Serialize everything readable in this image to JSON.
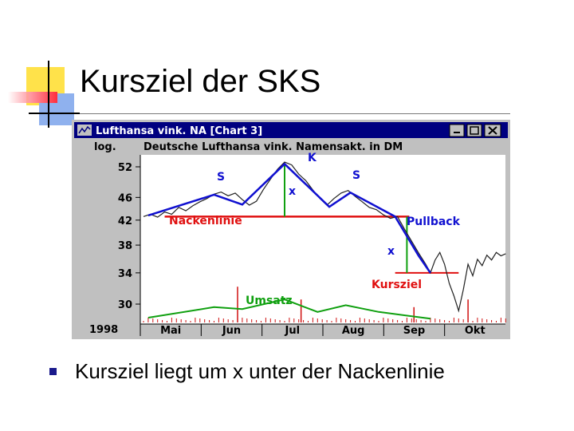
{
  "slide": {
    "title": "Kursziel der SKS",
    "bullet_text": "Kursziel liegt um x unter der Nackenlinie"
  },
  "window": {
    "title": "Lufthansa vink. NA  [Chart 3]",
    "buttons": [
      "minimize",
      "maximize",
      "close"
    ]
  },
  "chart_data": {
    "type": "line",
    "title": "Deutsche Lufthansa vink. Namensakt. in DM",
    "scale": "log.",
    "year": "1998",
    "y_ticks": [
      30,
      34,
      38,
      42,
      46,
      52
    ],
    "x_months": [
      "Mai",
      "Jun",
      "Jul",
      "Aug",
      "Sep",
      "Okt"
    ],
    "price_series": [
      [
        0,
        42.6
      ],
      [
        3,
        43.0
      ],
      [
        6,
        42.5
      ],
      [
        9,
        43.4
      ],
      [
        12,
        43.0
      ],
      [
        15,
        44.2
      ],
      [
        18,
        43.6
      ],
      [
        21,
        44.5
      ],
      [
        24,
        45.2
      ],
      [
        27,
        45.8
      ],
      [
        30,
        46.6
      ],
      [
        33,
        47.0
      ],
      [
        36,
        46.3
      ],
      [
        39,
        46.8
      ],
      [
        42,
        45.6
      ],
      [
        45,
        44.6
      ],
      [
        48,
        45.3
      ],
      [
        51,
        47.5
      ],
      [
        54,
        49.5
      ],
      [
        57,
        51.5
      ],
      [
        60,
        53.0
      ],
      [
        63,
        52.4
      ],
      [
        66,
        50.5
      ],
      [
        69,
        49.2
      ],
      [
        72,
        47.4
      ],
      [
        75,
        45.8
      ],
      [
        78,
        44.6
      ],
      [
        81,
        45.8
      ],
      [
        84,
        46.8
      ],
      [
        87,
        47.3
      ],
      [
        90,
        46.2
      ],
      [
        93,
        45.2
      ],
      [
        96,
        44.2
      ],
      [
        99,
        43.8
      ],
      [
        102,
        42.9
      ],
      [
        105,
        42.3
      ],
      [
        108,
        42.6
      ],
      [
        111,
        40.5
      ],
      [
        114,
        38.6
      ],
      [
        117,
        36.8
      ],
      [
        120,
        35.2
      ],
      [
        122,
        34.0
      ],
      [
        124,
        35.8
      ],
      [
        126,
        36.9
      ],
      [
        128,
        35.2
      ],
      [
        130,
        32.6
      ],
      [
        132,
        31.0
      ],
      [
        134,
        29.2
      ],
      [
        136,
        31.8
      ],
      [
        138,
        35.2
      ],
      [
        140,
        33.6
      ],
      [
        142,
        35.9
      ],
      [
        144,
        35.0
      ],
      [
        146,
        36.5
      ],
      [
        148,
        35.8
      ],
      [
        150,
        36.9
      ],
      [
        152,
        36.4
      ],
      [
        154,
        36.7
      ]
    ],
    "trend_line": [
      [
        2,
        42.8
      ],
      [
        30,
        46.5
      ],
      [
        42,
        44.7
      ],
      [
        60,
        52.6
      ],
      [
        79,
        44.3
      ],
      [
        88,
        46.9
      ],
      [
        107,
        42.6
      ],
      [
        117,
        36.4
      ],
      [
        122,
        34.0
      ]
    ],
    "neckline": {
      "value": 42.6,
      "label": "Nackenlinie"
    },
    "target": {
      "value": 34.0,
      "label": "Kursziel"
    },
    "pullback_label": "Pullback",
    "pattern_labels": [
      "S",
      "K",
      "S"
    ],
    "distance_label": "x",
    "volume_label": "Umsatz",
    "volume_trend": [
      [
        2,
        1
      ],
      [
        30,
        3.2
      ],
      [
        42,
        2.8
      ],
      [
        60,
        4.8
      ],
      [
        74,
        2.2
      ],
      [
        86,
        3.6
      ],
      [
        100,
        2.2
      ],
      [
        122,
        0.8
      ]
    ],
    "volume_spikes": [
      [
        40,
        14
      ],
      [
        67,
        9
      ],
      [
        115,
        6
      ],
      [
        138,
        9
      ]
    ],
    "colors": {
      "price": "#202020",
      "trend": "#1010d0",
      "neckline": "#e01010",
      "target": "#e01010",
      "distance": "#10a010",
      "labels_blue": "#1010d0",
      "labels_red": "#e01010",
      "volume_label": "#10a010",
      "volume_bars": "#d01010"
    }
  }
}
